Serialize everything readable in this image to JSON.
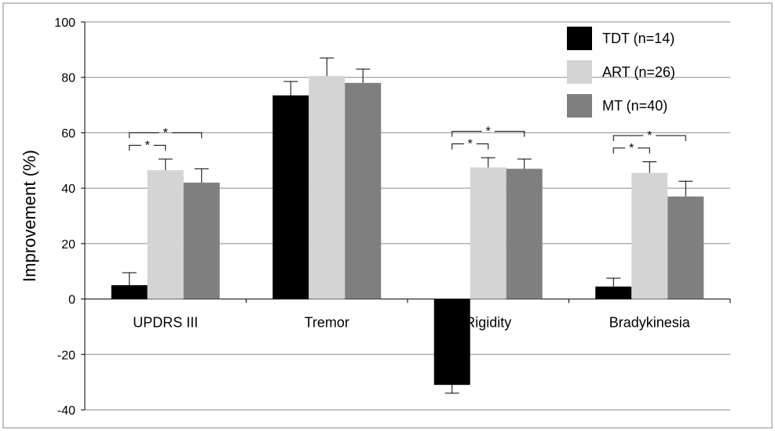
{
  "chart_data": {
    "type": "bar",
    "ylabel": "Improvement (%)",
    "xlabel": "",
    "ylim": [
      -40,
      100
    ],
    "yticks": [
      -40,
      -20,
      0,
      20,
      40,
      60,
      80,
      100
    ],
    "grid": true,
    "legend_position": "top-right",
    "categories": [
      "UPDRS III",
      "Tremor",
      "Rigidity",
      "Bradykinesia"
    ],
    "series": [
      {
        "name": "TDT (n=14)",
        "color": "#000000",
        "values": [
          5,
          73.5,
          -31,
          4.5
        ],
        "errors": [
          4.5,
          5,
          3,
          3
        ]
      },
      {
        "name": "ART (n=26)",
        "color": "#d4d4d4",
        "values": [
          46.5,
          80.5,
          47.5,
          45.5
        ],
        "errors": [
          4,
          6.5,
          3.5,
          4
        ]
      },
      {
        "name": "MT (n=40)",
        "color": "#7f7f7f",
        "values": [
          42,
          78,
          47,
          37
        ],
        "errors": [
          5,
          5,
          3.5,
          5.5
        ]
      }
    ],
    "significance": [
      {
        "category": 0,
        "from_series": 0,
        "to_series": 1,
        "label": "*"
      },
      {
        "category": 0,
        "from_series": 0,
        "to_series": 2,
        "label": "*"
      },
      {
        "category": 2,
        "from_series": 0,
        "to_series": 1,
        "label": "*"
      },
      {
        "category": 2,
        "from_series": 0,
        "to_series": 2,
        "label": "*"
      },
      {
        "category": 3,
        "from_series": 0,
        "to_series": 1,
        "label": "*"
      },
      {
        "category": 3,
        "from_series": 0,
        "to_series": 2,
        "label": "*"
      }
    ]
  }
}
